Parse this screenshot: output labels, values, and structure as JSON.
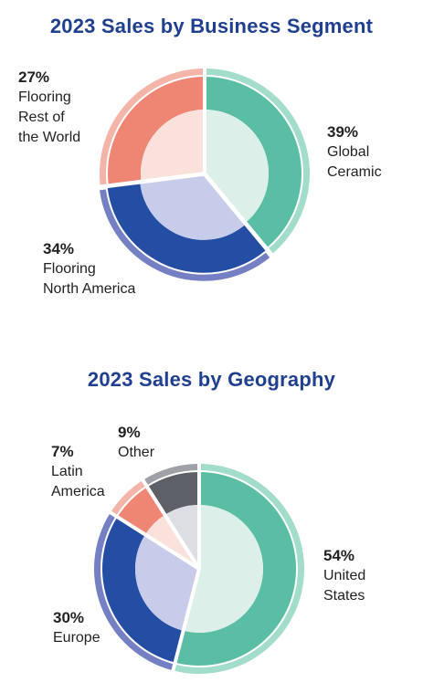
{
  "chart_data": [
    {
      "type": "pie",
      "title": "2023 Sales by Business Segment",
      "slices": [
        {
          "label": "Global Ceramic",
          "value": 39,
          "pct_label": "39%",
          "inner": "#dcefe9",
          "outer": "#59bea3",
          "ring": "#a2dccb"
        },
        {
          "label": "Flooring North America",
          "value": 34,
          "pct_label": "34%",
          "inner": "#c8cceb",
          "outer": "#244ea4",
          "ring": "#7480c3"
        },
        {
          "label": "Flooring Rest of the World",
          "value": 27,
          "pct_label": "27%",
          "inner": "#fbe1dc",
          "outer": "#ef8674",
          "ring": "#f4b5a8"
        }
      ]
    },
    {
      "type": "pie",
      "title": "2023 Sales by Geography",
      "slices": [
        {
          "label": "United States",
          "value": 54,
          "pct_label": "54%",
          "inner": "#dcefe9",
          "outer": "#59bea3",
          "ring": "#a2dccb"
        },
        {
          "label": "Europe",
          "value": 30,
          "pct_label": "30%",
          "inner": "#c8cceb",
          "outer": "#244ea4",
          "ring": "#7480c3"
        },
        {
          "label": "Latin America",
          "value": 7,
          "pct_label": "7%",
          "inner": "#fbe1dc",
          "outer": "#ef8674",
          "ring": "#f4b5a8"
        },
        {
          "label": "Other",
          "value": 9,
          "pct_label": "9%",
          "inner": "#dcdee3",
          "outer": "#5e6068",
          "ring": "#9fa1a8"
        }
      ]
    }
  ],
  "labels": {
    "c1": [
      {
        "pct": "39%",
        "name": "Global\nCeramic"
      },
      {
        "pct": "34%",
        "name": "Flooring\nNorth America"
      },
      {
        "pct": "27%",
        "name": "Flooring\nRest of\nthe World"
      }
    ],
    "c2": [
      {
        "pct": "54%",
        "name": "United\nStates"
      },
      {
        "pct": "30%",
        "name": "Europe"
      },
      {
        "pct": "7%",
        "name": "Latin\nAmerica"
      },
      {
        "pct": "9%",
        "name": "Other"
      }
    ]
  }
}
